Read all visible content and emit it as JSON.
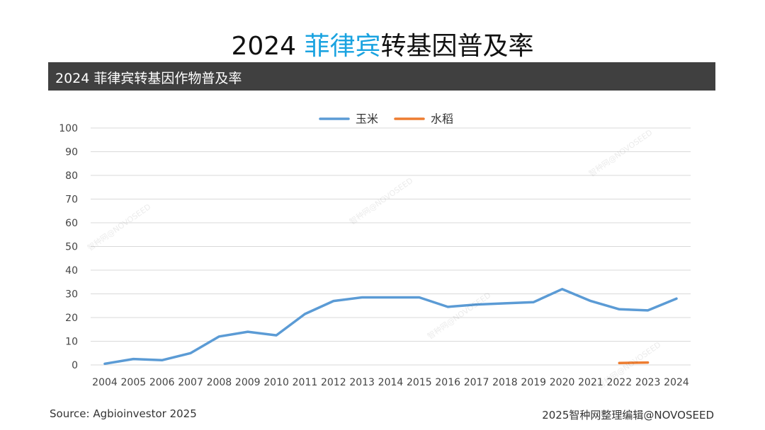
{
  "title": {
    "year": "2024",
    "country": "菲律宾",
    "rest": "转基因普及率"
  },
  "section_header": "2024 菲律宾转基因作物普及率",
  "footer": {
    "source": "Source: Agbioinvestor 2025",
    "credit": "2025智种网整理编辑@NOVOSEED"
  },
  "watermark_text": "智种网@NOVOSEED",
  "colors": {
    "corn": "#5b9bd5",
    "rice": "#ed7d31",
    "grid": "#d9d9d9",
    "header_bg": "#404040",
    "title_highlight": "#1aa3e0"
  },
  "chart_data": {
    "type": "line",
    "x": [
      "2004",
      "2005",
      "2006",
      "2007",
      "2008",
      "2009",
      "2010",
      "2011",
      "2012",
      "2013",
      "2014",
      "2015",
      "2016",
      "2017",
      "2018",
      "2019",
      "2020",
      "2021",
      "2022",
      "2023",
      "2024"
    ],
    "ylim": [
      0,
      100
    ],
    "yticks": [
      0,
      10,
      20,
      30,
      40,
      50,
      60,
      70,
      80,
      90,
      100
    ],
    "grid": true,
    "legend_position": "top-center",
    "series": [
      {
        "name": "玉米",
        "color": "#5b9bd5",
        "values": [
          0.5,
          2.5,
          2.0,
          5.0,
          12.0,
          14.0,
          12.5,
          21.5,
          27.0,
          28.5,
          28.5,
          28.5,
          24.5,
          25.5,
          26.0,
          26.5,
          32.0,
          27.0,
          23.5,
          23.0,
          28.0
        ]
      },
      {
        "name": "水稻",
        "color": "#ed7d31",
        "values": [
          null,
          null,
          null,
          null,
          null,
          null,
          null,
          null,
          null,
          null,
          null,
          null,
          null,
          null,
          null,
          null,
          null,
          null,
          0.8,
          1.0,
          null
        ]
      }
    ]
  }
}
